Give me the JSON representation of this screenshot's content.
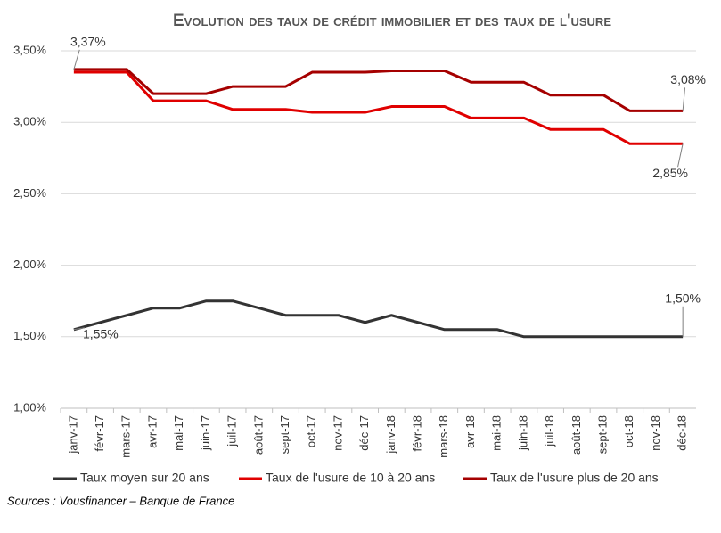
{
  "chart_data": {
    "type": "line",
    "title": "Evolution des taux de crédit immobilier et des taux de l'usure",
    "source": "Sources : Vousfinancer – Banque de France",
    "categories": [
      "janv-17",
      "févr-17",
      "mars-17",
      "avr-17",
      "mai-17",
      "juin-17",
      "juil-17",
      "août-17",
      "sept-17",
      "oct-17",
      "nov-17",
      "déc-17",
      "janv-18",
      "févr-18",
      "mars-18",
      "avr-18",
      "mai-18",
      "juin-18",
      "juil-18",
      "août-18",
      "sept-18",
      "oct-18",
      "nov-18",
      "déc-18"
    ],
    "series": [
      {
        "name": "Taux moyen sur 20 ans",
        "color": "#333333",
        "values": [
          1.55,
          1.6,
          1.65,
          1.7,
          1.7,
          1.75,
          1.75,
          1.7,
          1.65,
          1.65,
          1.65,
          1.6,
          1.65,
          1.6,
          1.55,
          1.55,
          1.55,
          1.5,
          1.5,
          1.5,
          1.5,
          1.5,
          1.5,
          1.5
        ],
        "value_labels": [
          "1,55%",
          null,
          null,
          null,
          null,
          null,
          null,
          null,
          null,
          null,
          null,
          null,
          null,
          null,
          null,
          null,
          null,
          null,
          null,
          null,
          null,
          null,
          null,
          "1,50%"
        ]
      },
      {
        "name": "Taux de l'usure de 10 à 20 ans",
        "color": "#e00000",
        "values": [
          3.35,
          3.35,
          3.35,
          3.15,
          3.15,
          3.15,
          3.09,
          3.09,
          3.09,
          3.07,
          3.07,
          3.07,
          3.11,
          3.11,
          3.11,
          3.03,
          3.03,
          3.03,
          2.95,
          2.95,
          2.95,
          2.85,
          2.85,
          2.85
        ],
        "value_labels": [
          null,
          null,
          null,
          null,
          null,
          null,
          null,
          null,
          null,
          null,
          null,
          null,
          null,
          null,
          null,
          null,
          null,
          null,
          null,
          null,
          null,
          null,
          null,
          "2,85%"
        ]
      },
      {
        "name": "Taux de l'usure plus de 20 ans",
        "color": "#a50000",
        "values": [
          3.37,
          3.37,
          3.37,
          3.2,
          3.2,
          3.2,
          3.25,
          3.25,
          3.25,
          3.35,
          3.35,
          3.35,
          3.36,
          3.36,
          3.36,
          3.28,
          3.28,
          3.28,
          3.19,
          3.19,
          3.19,
          3.08,
          3.08,
          3.08
        ],
        "value_labels": [
          "3,37%",
          null,
          null,
          null,
          null,
          null,
          null,
          null,
          null,
          null,
          null,
          null,
          null,
          null,
          null,
          null,
          null,
          null,
          null,
          null,
          null,
          null,
          null,
          "3,08%"
        ]
      }
    ],
    "ylim": [
      1.0,
      3.5
    ],
    "yticks": [
      {
        "value": 1.0,
        "label": "1,00%"
      },
      {
        "value": 1.5,
        "label": "1,50%"
      },
      {
        "value": 2.0,
        "label": "2,00%"
      },
      {
        "value": 2.5,
        "label": "2,50%"
      },
      {
        "value": 3.0,
        "label": "3,00%"
      },
      {
        "value": 3.5,
        "label": "3,50%"
      }
    ],
    "grid": true,
    "legend": "bottom"
  }
}
